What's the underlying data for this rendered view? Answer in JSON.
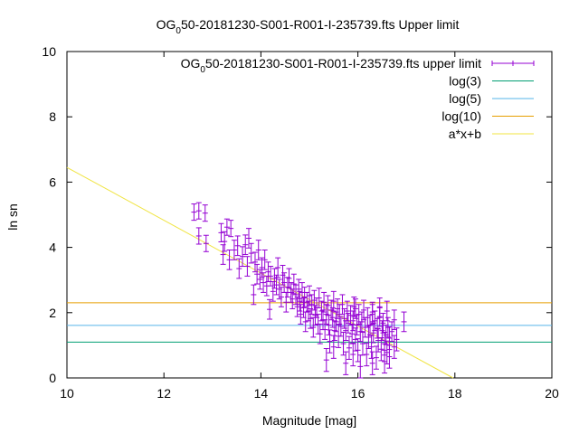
{
  "chart_data": {
    "type": "scatter",
    "title_pre": "OG",
    "title_sub": "0",
    "title_post": "50-20181230-S001-R001-I-235739.fts Upper limit",
    "xlabel": "Magnitude [mag]",
    "ylabel": "ln sn",
    "xlim": [
      10,
      20
    ],
    "ylim": [
      0,
      10
    ],
    "x_ticks": [
      "10",
      "12",
      "14",
      "16",
      "18",
      "20"
    ],
    "y_ticks": [
      "0",
      "2",
      "4",
      "6",
      "8",
      "10"
    ],
    "legend_position": "top-right",
    "legend": [
      {
        "pre": "OG",
        "sub": "0",
        "post": "50-20181230-S001-R001-I-235739.fts upper limit",
        "color": "#9400d3",
        "kind": "errorbar"
      },
      {
        "pre": "log(3)",
        "sub": "",
        "post": "",
        "color": "#009e73",
        "kind": "line"
      },
      {
        "pre": "log(5)",
        "sub": "",
        "post": "",
        "color": "#56b4e9",
        "kind": "line"
      },
      {
        "pre": "log(10)",
        "sub": "",
        "post": "",
        "color": "#e69f00",
        "kind": "line"
      },
      {
        "pre": "a*x+b",
        "sub": "",
        "post": "",
        "color": "#f0e442",
        "kind": "line"
      }
    ],
    "hlines": [
      {
        "name": "log(3)",
        "y": 1.0986,
        "color": "#009e73"
      },
      {
        "name": "log(5)",
        "y": 1.6094,
        "color": "#56b4e9"
      },
      {
        "name": "log(10)",
        "y": 2.3026,
        "color": "#e69f00"
      }
    ],
    "fit": {
      "name": "a*x+b",
      "a": -0.81,
      "b": 14.55,
      "color": "#f0e442"
    },
    "points": [
      [
        12.62,
        5.08,
        0.25
      ],
      [
        12.72,
        5.12,
        0.25
      ],
      [
        12.85,
        5.05,
        0.25
      ],
      [
        12.72,
        4.35,
        0.25
      ],
      [
        12.87,
        4.12,
        0.25
      ],
      [
        13.18,
        4.45,
        0.28
      ],
      [
        13.25,
        4.18,
        0.3
      ],
      [
        13.3,
        4.62,
        0.25
      ],
      [
        13.38,
        4.58,
        0.25
      ],
      [
        13.22,
        3.78,
        0.3
      ],
      [
        13.35,
        3.62,
        0.3
      ],
      [
        13.45,
        3.92,
        0.3
      ],
      [
        13.52,
        4.05,
        0.3
      ],
      [
        13.55,
        3.35,
        0.3
      ],
      [
        13.62,
        3.72,
        0.3
      ],
      [
        13.68,
        4.08,
        0.3
      ],
      [
        13.72,
        3.42,
        0.3
      ],
      [
        13.75,
        4.28,
        0.3
      ],
      [
        13.8,
        3.82,
        0.3
      ],
      [
        13.85,
        2.55,
        0.3
      ],
      [
        13.88,
        3.55,
        0.3
      ],
      [
        13.92,
        3.18,
        0.3
      ],
      [
        13.95,
        3.92,
        0.3
      ],
      [
        13.98,
        3.02,
        0.3
      ],
      [
        14.02,
        3.38,
        0.3
      ],
      [
        14.05,
        2.92,
        0.3
      ],
      [
        14.08,
        3.62,
        0.3
      ],
      [
        14.12,
        2.82,
        0.3
      ],
      [
        14.15,
        3.25,
        0.3
      ],
      [
        14.18,
        2.1,
        0.3
      ],
      [
        14.2,
        3.12,
        0.3
      ],
      [
        14.25,
        2.65,
        0.3
      ],
      [
        14.28,
        3.05,
        0.3
      ],
      [
        14.32,
        2.85,
        0.3
      ],
      [
        14.35,
        3.38,
        0.3
      ],
      [
        14.38,
        2.72,
        0.3
      ],
      [
        14.42,
        2.48,
        0.3
      ],
      [
        14.45,
        3.15,
        0.3
      ],
      [
        14.48,
        2.92,
        0.3
      ],
      [
        14.52,
        2.32,
        0.3
      ],
      [
        14.55,
        2.78,
        0.3
      ],
      [
        14.58,
        3.05,
        0.3
      ],
      [
        14.62,
        2.62,
        0.3
      ],
      [
        14.65,
        2.42,
        0.3
      ],
      [
        14.68,
        2.88,
        0.3
      ],
      [
        14.72,
        2.55,
        0.3
      ],
      [
        14.75,
        2.18,
        0.3
      ],
      [
        14.78,
        2.72,
        0.3
      ],
      [
        14.8,
        2.35,
        0.3
      ],
      [
        14.82,
        1.95,
        0.3
      ],
      [
        14.85,
        2.62,
        0.3
      ],
      [
        14.88,
        2.15,
        0.3
      ],
      [
        14.9,
        2.48,
        0.3
      ],
      [
        14.92,
        1.72,
        0.3
      ],
      [
        14.95,
        2.32,
        0.3
      ],
      [
        14.98,
        2.05,
        0.3
      ],
      [
        15.0,
        2.52,
        0.3
      ],
      [
        15.02,
        1.82,
        0.3
      ],
      [
        15.05,
        2.25,
        0.3
      ],
      [
        15.08,
        1.55,
        0.3
      ],
      [
        15.1,
        2.38,
        0.3
      ],
      [
        15.12,
        1.92,
        0.3
      ],
      [
        15.15,
        2.15,
        0.3
      ],
      [
        15.18,
        1.65,
        0.3
      ],
      [
        15.2,
        2.45,
        0.3
      ],
      [
        15.22,
        1.35,
        0.3
      ],
      [
        15.25,
        2.05,
        0.3
      ],
      [
        15.28,
        1.78,
        0.3
      ],
      [
        15.3,
        2.32,
        0.3
      ],
      [
        15.32,
        1.48,
        0.3
      ],
      [
        15.35,
        1.95,
        0.3
      ],
      [
        15.38,
        2.22,
        0.3
      ],
      [
        15.4,
        1.62,
        0.3
      ],
      [
        15.42,
        1.12,
        0.35
      ],
      [
        15.45,
        2.08,
        0.3
      ],
      [
        15.48,
        1.85,
        0.3
      ],
      [
        15.5,
        2.35,
        0.3
      ],
      [
        15.52,
        1.45,
        0.3
      ],
      [
        15.55,
        1.72,
        0.3
      ],
      [
        15.58,
        2.12,
        0.3
      ],
      [
        15.6,
        1.28,
        0.35
      ],
      [
        15.62,
        1.95,
        0.3
      ],
      [
        15.65,
        1.58,
        0.3
      ],
      [
        15.68,
        2.25,
        0.3
      ],
      [
        15.7,
        1.05,
        0.35
      ],
      [
        15.72,
        1.82,
        0.3
      ],
      [
        15.75,
        1.45,
        0.3
      ],
      [
        15.78,
        2.05,
        0.3
      ],
      [
        15.8,
        1.68,
        0.3
      ],
      [
        15.82,
        0.92,
        0.35
      ],
      [
        15.85,
        1.92,
        0.3
      ],
      [
        15.88,
        1.35,
        0.3
      ],
      [
        15.9,
        1.75,
        0.3
      ],
      [
        15.92,
        2.18,
        0.3
      ],
      [
        15.95,
        1.18,
        0.35
      ],
      [
        15.98,
        1.62,
        0.3
      ],
      [
        16.0,
        0.85,
        0.35
      ],
      [
        16.02,
        1.95,
        0.3
      ],
      [
        16.05,
        1.42,
        0.3
      ],
      [
        16.08,
        1.72,
        0.3
      ],
      [
        16.1,
        1.05,
        0.35
      ],
      [
        16.12,
        2.08,
        0.3
      ],
      [
        16.15,
        1.55,
        0.3
      ],
      [
        16.18,
        0.72,
        0.35
      ],
      [
        16.2,
        1.85,
        0.3
      ],
      [
        16.22,
        1.25,
        0.35
      ],
      [
        16.25,
        1.62,
        0.3
      ],
      [
        16.28,
        0.95,
        0.35
      ],
      [
        16.3,
        2.02,
        0.3
      ],
      [
        16.32,
        1.38,
        0.3
      ],
      [
        16.35,
        1.75,
        0.3
      ],
      [
        16.38,
        0.62,
        0.35
      ],
      [
        16.4,
        1.52,
        0.3
      ],
      [
        16.42,
        1.15,
        0.35
      ],
      [
        16.45,
        1.88,
        0.3
      ],
      [
        16.48,
        0.88,
        0.35
      ],
      [
        16.5,
        1.45,
        0.3
      ],
      [
        16.52,
        1.68,
        0.3
      ],
      [
        16.55,
        1.05,
        0.35
      ],
      [
        16.58,
        1.32,
        0.3
      ],
      [
        16.6,
        0.78,
        0.35
      ],
      [
        16.62,
        1.55,
        0.3
      ],
      [
        16.65,
        1.22,
        0.35
      ],
      [
        16.7,
        1.42,
        0.3
      ],
      [
        16.75,
        0.95,
        0.35
      ],
      [
        16.8,
        1.18,
        0.35
      ],
      [
        15.35,
        0.55,
        0.35
      ],
      [
        15.75,
        0.45,
        0.35
      ],
      [
        16.05,
        0.35,
        0.35
      ],
      [
        16.3,
        0.45,
        0.35
      ],
      [
        16.55,
        0.5,
        0.35
      ],
      [
        15.5,
        0.95,
        0.35
      ],
      [
        15.9,
        0.72,
        0.35
      ],
      [
        16.65,
        0.65,
        0.35
      ],
      [
        16.95,
        1.72,
        0.3
      ],
      [
        16.3,
        1.95,
        0.3
      ],
      [
        15.95,
        2.12,
        0.3
      ],
      [
        16.45,
        2.15,
        0.3
      ],
      [
        16.6,
        2.05,
        0.3
      ],
      [
        16.75,
        1.78,
        0.3
      ]
    ]
  }
}
